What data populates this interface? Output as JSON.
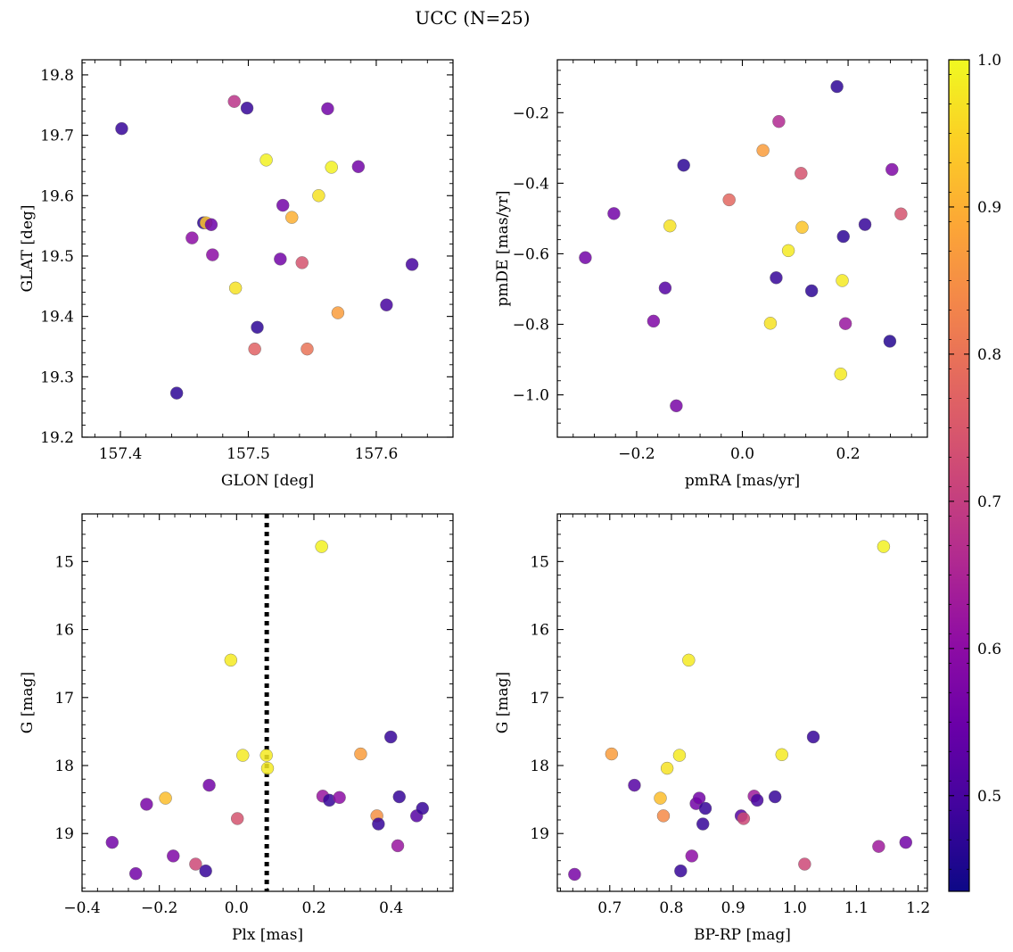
{
  "title": "UCC (N=25)",
  "colorbar": {
    "cmap": "plasma",
    "range": [
      0.435,
      1.0
    ],
    "ticks": [
      0.5,
      0.6,
      0.7,
      0.8,
      0.9,
      1.0
    ],
    "tick_labels": [
      "0.5",
      "0.6",
      "0.7",
      "0.8",
      "0.9",
      "1.0"
    ]
  },
  "chart_data": [
    {
      "type": "scatter",
      "xlabel": "GLON [deg]",
      "ylabel": "GLAT [deg]",
      "xlim": [
        157.37,
        157.66
      ],
      "ylim": [
        19.2,
        19.825
      ],
      "xticks": [
        157.4,
        157.5,
        157.6
      ],
      "xtick_labels": [
        "157.4",
        "157.5",
        "157.6"
      ],
      "yticks": [
        19.2,
        19.3,
        19.4,
        19.5,
        19.6,
        19.7,
        19.8
      ],
      "ytick_labels": [
        "19.2",
        "19.3",
        "19.4",
        "19.5",
        "19.6",
        "19.7",
        "19.8"
      ],
      "points": [
        {
          "x": 157.401,
          "y": 19.711,
          "c": 0.48
        },
        {
          "x": 157.444,
          "y": 19.273,
          "c": 0.47
        },
        {
          "x": 157.456,
          "y": 19.53,
          "c": 0.6
        },
        {
          "x": 157.465,
          "y": 19.555,
          "c": 0.47
        },
        {
          "x": 157.467,
          "y": 19.555,
          "c": 0.93
        },
        {
          "x": 157.471,
          "y": 19.552,
          "c": 0.55
        },
        {
          "x": 157.472,
          "y": 19.502,
          "c": 0.6
        },
        {
          "x": 157.489,
          "y": 19.756,
          "c": 0.68
        },
        {
          "x": 157.49,
          "y": 19.447,
          "c": 0.97
        },
        {
          "x": 157.499,
          "y": 19.745,
          "c": 0.48
        },
        {
          "x": 157.505,
          "y": 19.346,
          "c": 0.77
        },
        {
          "x": 157.507,
          "y": 19.382,
          "c": 0.47
        },
        {
          "x": 157.514,
          "y": 19.659,
          "c": 0.99
        },
        {
          "x": 157.525,
          "y": 19.495,
          "c": 0.56
        },
        {
          "x": 157.527,
          "y": 19.584,
          "c": 0.56
        },
        {
          "x": 157.534,
          "y": 19.564,
          "c": 0.9
        },
        {
          "x": 157.542,
          "y": 19.489,
          "c": 0.74
        },
        {
          "x": 157.546,
          "y": 19.346,
          "c": 0.8
        },
        {
          "x": 157.555,
          "y": 19.6,
          "c": 0.97
        },
        {
          "x": 157.562,
          "y": 19.744,
          "c": 0.56
        },
        {
          "x": 157.565,
          "y": 19.647,
          "c": 0.99
        },
        {
          "x": 157.57,
          "y": 19.406,
          "c": 0.87
        },
        {
          "x": 157.586,
          "y": 19.648,
          "c": 0.56
        },
        {
          "x": 157.608,
          "y": 19.419,
          "c": 0.5
        },
        {
          "x": 157.628,
          "y": 19.486,
          "c": 0.5
        }
      ]
    },
    {
      "type": "scatter",
      "xlabel": "pmRA [mas/yr]",
      "ylabel": "pmDE [mas/yr]",
      "xlim": [
        -0.35,
        0.35
      ],
      "ylim": [
        -1.12,
        -0.05
      ],
      "xticks": [
        -0.2,
        0.0,
        0.2
      ],
      "xtick_labels": [
        "−0.2",
        "0.0",
        "0.2"
      ],
      "yticks": [
        -1.0,
        -0.8,
        -0.6,
        -0.4,
        -0.2
      ],
      "ytick_labels": [
        "−1.0",
        "−0.8",
        "−0.6",
        "−0.4",
        "−0.2"
      ],
      "points": [
        {
          "x": -0.297,
          "y": -0.611,
          "c": 0.56
        },
        {
          "x": -0.243,
          "y": -0.486,
          "c": 0.56
        },
        {
          "x": -0.168,
          "y": -0.791,
          "c": 0.58
        },
        {
          "x": -0.146,
          "y": -0.697,
          "c": 0.52
        },
        {
          "x": -0.137,
          "y": -0.521,
          "c": 0.97
        },
        {
          "x": -0.125,
          "y": -1.031,
          "c": 0.57
        },
        {
          "x": -0.111,
          "y": -0.349,
          "c": 0.47
        },
        {
          "x": -0.025,
          "y": -0.447,
          "c": 0.78
        },
        {
          "x": 0.039,
          "y": -0.307,
          "c": 0.87
        },
        {
          "x": 0.053,
          "y": -0.797,
          "c": 0.97
        },
        {
          "x": 0.064,
          "y": -0.668,
          "c": 0.48
        },
        {
          "x": 0.069,
          "y": -0.225,
          "c": 0.66
        },
        {
          "x": 0.087,
          "y": -0.591,
          "c": 0.98
        },
        {
          "x": 0.111,
          "y": -0.372,
          "c": 0.74
        },
        {
          "x": 0.113,
          "y": -0.525,
          "c": 0.93
        },
        {
          "x": 0.131,
          "y": -0.705,
          "c": 0.47
        },
        {
          "x": 0.179,
          "y": -0.126,
          "c": 0.47
        },
        {
          "x": 0.186,
          "y": -0.941,
          "c": 0.98
        },
        {
          "x": 0.189,
          "y": -0.676,
          "c": 0.98
        },
        {
          "x": 0.191,
          "y": -0.551,
          "c": 0.47
        },
        {
          "x": 0.195,
          "y": -0.798,
          "c": 0.62
        },
        {
          "x": 0.232,
          "y": -0.517,
          "c": 0.48
        },
        {
          "x": 0.279,
          "y": -0.848,
          "c": 0.46
        },
        {
          "x": 0.283,
          "y": -0.361,
          "c": 0.58
        },
        {
          "x": 0.3,
          "y": -0.487,
          "c": 0.74
        }
      ]
    },
    {
      "type": "scatter",
      "xlabel": "Plx [mas]",
      "ylabel": "G [mag]",
      "xlim": [
        -0.4,
        0.56
      ],
      "ylim": [
        19.85,
        14.3
      ],
      "y_inverted": true,
      "xticks": [
        -0.4,
        -0.2,
        0.0,
        0.2,
        0.4
      ],
      "xtick_labels": [
        "−0.4",
        "−0.2",
        "0.0",
        "0.2",
        "0.4"
      ],
      "yticks": [
        15,
        16,
        17,
        18,
        19
      ],
      "ytick_labels": [
        "15",
        "16",
        "17",
        "18",
        "19"
      ],
      "vline": {
        "x": 0.078,
        "style": "dotted"
      },
      "points": [
        {
          "x": -0.322,
          "y": 19.13,
          "c": 0.56
        },
        {
          "x": -0.261,
          "y": 19.59,
          "c": 0.56
        },
        {
          "x": -0.233,
          "y": 18.57,
          "c": 0.57
        },
        {
          "x": -0.184,
          "y": 18.48,
          "c": 0.92
        },
        {
          "x": -0.164,
          "y": 19.33,
          "c": 0.58
        },
        {
          "x": -0.106,
          "y": 19.45,
          "c": 0.72
        },
        {
          "x": -0.08,
          "y": 19.55,
          "c": 0.48
        },
        {
          "x": -0.071,
          "y": 18.29,
          "c": 0.56
        },
        {
          "x": -0.015,
          "y": 16.45,
          "c": 0.98
        },
        {
          "x": 0.002,
          "y": 18.78,
          "c": 0.74
        },
        {
          "x": 0.016,
          "y": 17.85,
          "c": 0.98
        },
        {
          "x": 0.077,
          "y": 17.85,
          "c": 0.98
        },
        {
          "x": 0.08,
          "y": 18.04,
          "c": 0.98
        },
        {
          "x": 0.22,
          "y": 14.78,
          "c": 0.99
        },
        {
          "x": 0.223,
          "y": 18.45,
          "c": 0.62
        },
        {
          "x": 0.24,
          "y": 18.51,
          "c": 0.48
        },
        {
          "x": 0.266,
          "y": 18.47,
          "c": 0.6
        },
        {
          "x": 0.321,
          "y": 17.83,
          "c": 0.87
        },
        {
          "x": 0.363,
          "y": 18.74,
          "c": 0.85
        },
        {
          "x": 0.367,
          "y": 18.86,
          "c": 0.48
        },
        {
          "x": 0.399,
          "y": 17.58,
          "c": 0.48
        },
        {
          "x": 0.417,
          "y": 19.18,
          "c": 0.62
        },
        {
          "x": 0.421,
          "y": 18.46,
          "c": 0.48
        },
        {
          "x": 0.466,
          "y": 18.74,
          "c": 0.52
        },
        {
          "x": 0.481,
          "y": 18.63,
          "c": 0.48
        }
      ]
    },
    {
      "type": "scatter",
      "xlabel": "BP-RP [mag]",
      "ylabel": "G [mag]",
      "xlim": [
        0.615,
        1.215
      ],
      "ylim": [
        19.85,
        14.3
      ],
      "y_inverted": true,
      "xticks": [
        0.7,
        0.8,
        0.9,
        1.0,
        1.1,
        1.2
      ],
      "xtick_labels": [
        "0.7",
        "0.8",
        "0.9",
        "1.0",
        "1.1",
        "1.2"
      ],
      "yticks": [
        15,
        16,
        17,
        18,
        19
      ],
      "ytick_labels": [
        "15",
        "16",
        "17",
        "18",
        "19"
      ],
      "points": [
        {
          "x": 0.643,
          "y": 19.6,
          "c": 0.57
        },
        {
          "x": 0.703,
          "y": 17.83,
          "c": 0.87
        },
        {
          "x": 0.74,
          "y": 18.29,
          "c": 0.52
        },
        {
          "x": 0.782,
          "y": 18.48,
          "c": 0.92
        },
        {
          "x": 0.787,
          "y": 18.74,
          "c": 0.84
        },
        {
          "x": 0.793,
          "y": 18.04,
          "c": 0.97
        },
        {
          "x": 0.813,
          "y": 17.85,
          "c": 0.98
        },
        {
          "x": 0.815,
          "y": 19.55,
          "c": 0.48
        },
        {
          "x": 0.828,
          "y": 16.45,
          "c": 0.98
        },
        {
          "x": 0.833,
          "y": 19.33,
          "c": 0.6
        },
        {
          "x": 0.84,
          "y": 18.56,
          "c": 0.56
        },
        {
          "x": 0.845,
          "y": 18.48,
          "c": 0.56
        },
        {
          "x": 0.851,
          "y": 18.86,
          "c": 0.48
        },
        {
          "x": 0.855,
          "y": 18.63,
          "c": 0.48
        },
        {
          "x": 0.913,
          "y": 18.74,
          "c": 0.52
        },
        {
          "x": 0.917,
          "y": 18.78,
          "c": 0.72
        },
        {
          "x": 0.934,
          "y": 18.45,
          "c": 0.63
        },
        {
          "x": 0.939,
          "y": 18.51,
          "c": 0.5
        },
        {
          "x": 0.968,
          "y": 18.46,
          "c": 0.48
        },
        {
          "x": 0.979,
          "y": 17.84,
          "c": 0.98
        },
        {
          "x": 1.016,
          "y": 19.45,
          "c": 0.72
        },
        {
          "x": 1.03,
          "y": 17.58,
          "c": 0.48
        },
        {
          "x": 1.136,
          "y": 19.19,
          "c": 0.63
        },
        {
          "x": 1.144,
          "y": 14.78,
          "c": 0.99
        },
        {
          "x": 1.18,
          "y": 19.13,
          "c": 0.56
        }
      ]
    }
  ]
}
